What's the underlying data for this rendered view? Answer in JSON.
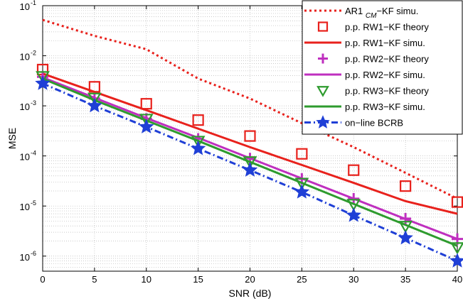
{
  "chart_data": {
    "type": "line",
    "xlabel": "SNR (dB)",
    "ylabel": "MSE",
    "x": [
      0,
      5,
      10,
      15,
      20,
      25,
      30,
      35,
      40
    ],
    "xticks": [
      "0",
      "5",
      "10",
      "15",
      "20",
      "25",
      "30",
      "35",
      "40"
    ],
    "xlim": [
      0,
      40
    ],
    "ylim": [
      5e-07,
      0.1
    ],
    "yscale": "log",
    "yticks": [
      {
        "value": 1e-06,
        "base": "10",
        "exp": "-6"
      },
      {
        "value": 1e-05,
        "base": "10",
        "exp": "-5"
      },
      {
        "value": 0.0001,
        "base": "10",
        "exp": "-4"
      },
      {
        "value": 0.001,
        "base": "10",
        "exp": "-3"
      },
      {
        "value": 0.01,
        "base": "10",
        "exp": "-2"
      },
      {
        "value": 0.1,
        "base": "10",
        "exp": "-1"
      }
    ],
    "grid": true,
    "legend_position": "top-right",
    "series": [
      {
        "name_main": "AR1 ",
        "name_sub": "CM",
        "name_rest": "−KF simu.",
        "color": "#e8211c",
        "style": "dotted",
        "marker": "none",
        "values": [
          0.052,
          0.025,
          0.0135,
          0.0035,
          0.0014,
          0.00045,
          0.00015,
          4.6e-05,
          1.4e-05
        ]
      },
      {
        "name": "p.p. RW1−KF theory",
        "color": "#e8211c",
        "style": "none",
        "marker": "square",
        "values": [
          0.0053,
          0.0024,
          0.0011,
          0.00052,
          0.00025,
          0.00011,
          5.2e-05,
          2.5e-05,
          1.2e-05
        ]
      },
      {
        "name": "p.p. RW1−KF simu.",
        "color": "#e8211c",
        "style": "solid",
        "marker": "none",
        "values": [
          0.0044,
          0.0019,
          0.00082,
          0.00035,
          0.00015,
          6.6e-05,
          2.9e-05,
          1.25e-05,
          7e-06
        ]
      },
      {
        "name": "p.p. RW2−KF theory",
        "color": "#bf2fbf",
        "style": "none",
        "marker": "plus",
        "values": [
          0.0038,
          0.0014,
          0.00055,
          0.00022,
          8.9e-05,
          3.5e-05,
          1.4e-05,
          5.6e-06,
          2.2e-06
        ]
      },
      {
        "name": "p.p. RW2−KF simu.",
        "color": "#bf2fbf",
        "style": "solid",
        "marker": "none",
        "values": [
          0.0037,
          0.00145,
          0.00057,
          0.00023,
          9e-05,
          3.55e-05,
          1.4e-05,
          5.5e-06,
          2.2e-06
        ]
      },
      {
        "name": "p.p. RW3−KF theory",
        "color": "#2e9b2e",
        "style": "none",
        "marker": "triangle-down",
        "values": [
          0.0039,
          0.00145,
          0.00055,
          0.0002,
          7.8e-05,
          2.9e-05,
          1.1e-05,
          4e-06,
          1.5e-06
        ]
      },
      {
        "name": "p.p. RW3−KF simu.",
        "color": "#2e9b2e",
        "style": "solid",
        "marker": "none",
        "values": [
          0.0035,
          0.0013,
          0.00051,
          0.0002,
          7.6e-05,
          2.9e-05,
          1.1e-05,
          4.2e-06,
          1.6e-06
        ]
      },
      {
        "name": "on−line BCRB",
        "color": "#1f3fd6",
        "style": "dashdot",
        "marker": "star",
        "values": [
          0.0028,
          0.001,
          0.00038,
          0.00014,
          5.2e-05,
          1.9e-05,
          6.5e-06,
          2.3e-06,
          8e-07
        ]
      }
    ]
  }
}
